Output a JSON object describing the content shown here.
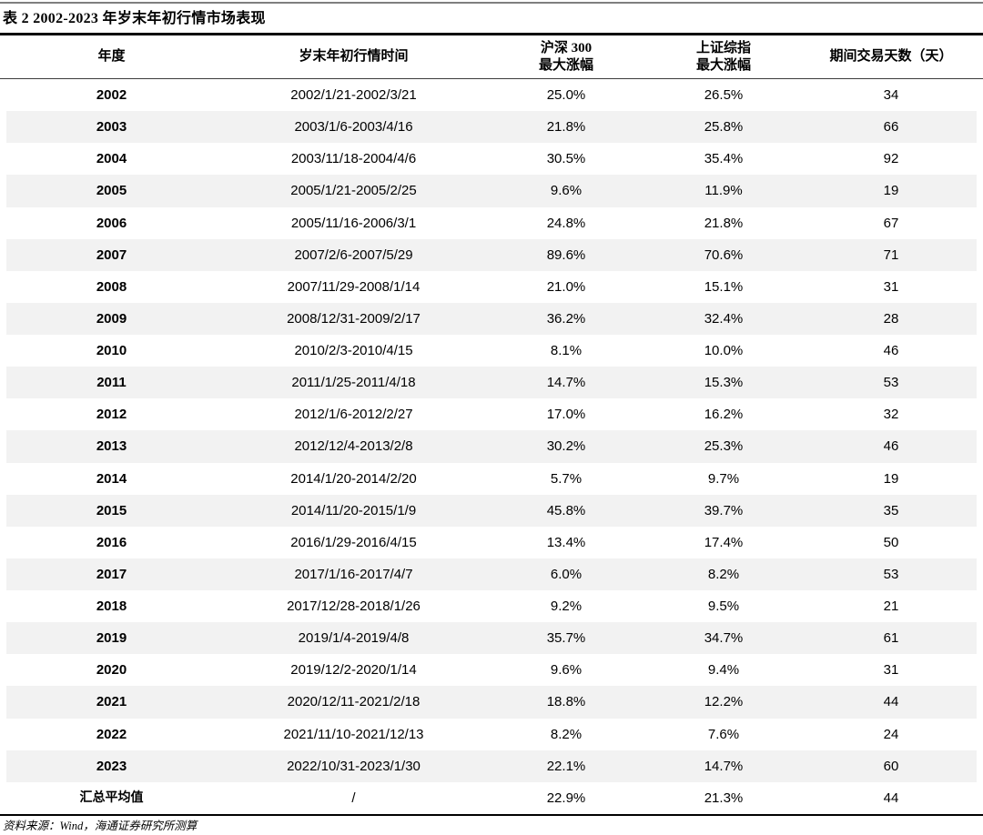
{
  "page": {
    "title": "表 2 2002-2023 年岁末年初行情市场表现",
    "source_note": "资料来源：Wind，海通证券研究所测算"
  },
  "table": {
    "columns": [
      {
        "label": "年度"
      },
      {
        "label": "岁末年初行情时间"
      },
      {
        "label": "沪深 300",
        "label2": "最大涨幅"
      },
      {
        "label": "上证综指",
        "label2": "最大涨幅"
      },
      {
        "label": "期间交易天数（天）"
      }
    ],
    "rows": [
      [
        "2002",
        "2002/1/21-2002/3/21",
        "25.0%",
        "26.5%",
        "34"
      ],
      [
        "2003",
        "2003/1/6-2003/4/16",
        "21.8%",
        "25.8%",
        "66"
      ],
      [
        "2004",
        "2003/11/18-2004/4/6",
        "30.5%",
        "35.4%",
        "92"
      ],
      [
        "2005",
        "2005/1/21-2005/2/25",
        "9.6%",
        "11.9%",
        "19"
      ],
      [
        "2006",
        "2005/11/16-2006/3/1",
        "24.8%",
        "21.8%",
        "67"
      ],
      [
        "2007",
        "2007/2/6-2007/5/29",
        "89.6%",
        "70.6%",
        "71"
      ],
      [
        "2008",
        "2007/11/29-2008/1/14",
        "21.0%",
        "15.1%",
        "31"
      ],
      [
        "2009",
        "2008/12/31-2009/2/17",
        "36.2%",
        "32.4%",
        "28"
      ],
      [
        "2010",
        "2010/2/3-2010/4/15",
        "8.1%",
        "10.0%",
        "46"
      ],
      [
        "2011",
        "2011/1/25-2011/4/18",
        "14.7%",
        "15.3%",
        "53"
      ],
      [
        "2012",
        "2012/1/6-2012/2/27",
        "17.0%",
        "16.2%",
        "32"
      ],
      [
        "2013",
        "2012/12/4-2013/2/8",
        "30.2%",
        "25.3%",
        "46"
      ],
      [
        "2014",
        "2014/1/20-2014/2/20",
        "5.7%",
        "9.7%",
        "19"
      ],
      [
        "2015",
        "2014/11/20-2015/1/9",
        "45.8%",
        "39.7%",
        "35"
      ],
      [
        "2016",
        "2016/1/29-2016/4/15",
        "13.4%",
        "17.4%",
        "50"
      ],
      [
        "2017",
        "2017/1/16-2017/4/7",
        "6.0%",
        "8.2%",
        "53"
      ],
      [
        "2018",
        "2017/12/28-2018/1/26",
        "9.2%",
        "9.5%",
        "21"
      ],
      [
        "2019",
        "2019/1/4-2019/4/8",
        "35.7%",
        "34.7%",
        "61"
      ],
      [
        "2020",
        "2019/12/2-2020/1/14",
        "9.6%",
        "9.4%",
        "31"
      ],
      [
        "2021",
        "2020/12/11-2021/2/18",
        "18.8%",
        "12.2%",
        "44"
      ],
      [
        "2022",
        "2021/11/10-2021/12/13",
        "8.2%",
        "7.6%",
        "24"
      ],
      [
        "2023",
        "2022/10/31-2023/1/30",
        "22.1%",
        "14.7%",
        "60"
      ],
      [
        "汇总平均值",
        "/",
        "22.9%",
        "21.3%",
        "44"
      ]
    ]
  },
  "colors": {
    "stripe": "#f2f2f2",
    "rule_black": "#000000",
    "rule_top_gray": "#7f7f7f"
  }
}
